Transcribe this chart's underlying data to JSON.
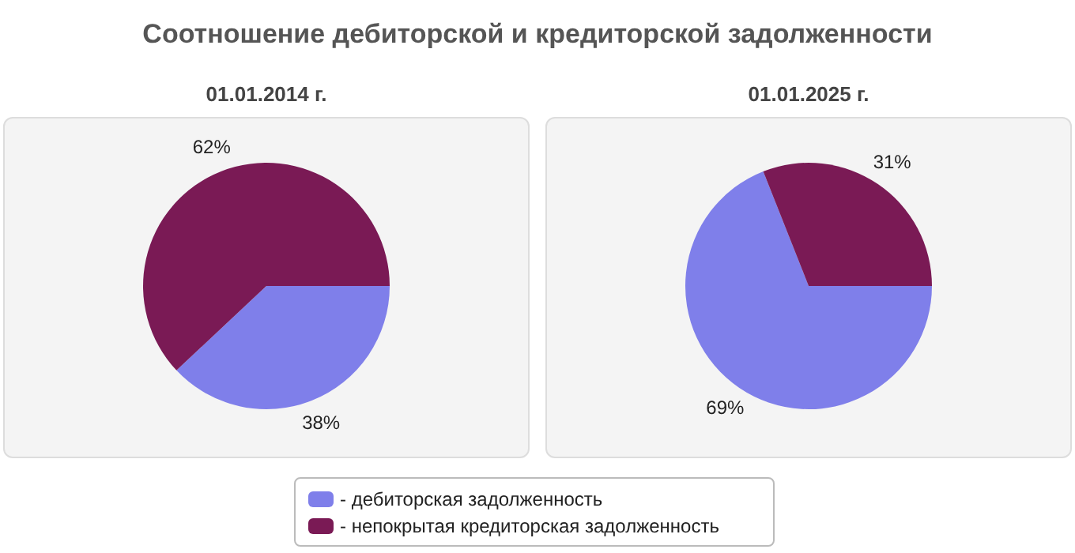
{
  "chart_data": [
    {
      "type": "pie",
      "title": "Соотношение дебиторской и кредиторской задолженности",
      "subtitle": "01.01.2014 г.",
      "categories": [
        "- дебиторская задолженность",
        "- непокрытая кредиторская задолженность"
      ],
      "values": [
        38,
        62
      ],
      "colors": [
        "#7f7fea",
        "#7a1a55"
      ],
      "value_labels": [
        "38%",
        "62%"
      ],
      "legend": "bottom"
    },
    {
      "type": "pie",
      "subtitle": "01.01.2025 г.",
      "values": [
        69,
        31
      ],
      "colors": [
        "#7f7fea",
        "#7a1a55"
      ],
      "value_labels": [
        "69%",
        "31%"
      ]
    }
  ]
}
